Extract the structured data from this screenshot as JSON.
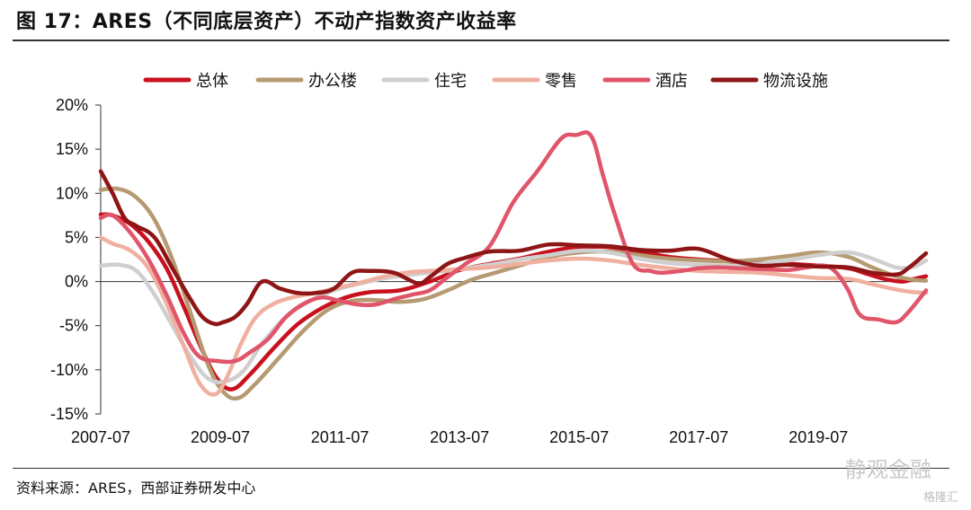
{
  "figure": {
    "title": "图 17：ARES（不同底层资产）不动产指数资产收益率",
    "source": "资料来源：ARES，西部证券研发中心",
    "watermark": "静观金融",
    "watermark2": "格隆汇"
  },
  "chart_data": {
    "type": "line",
    "ylim": [
      -15,
      20
    ],
    "y_ticks": [
      -15,
      -10,
      -5,
      0,
      5,
      10,
      15,
      20
    ],
    "y_tick_labels": [
      "-15%",
      "-10%",
      "-5%",
      "0%",
      "5%",
      "10%",
      "15%",
      "20%"
    ],
    "x_range": [
      2007.5,
      2021.3
    ],
    "x_ticks": [
      "2007-07",
      "2009-07",
      "2011-07",
      "2013-07",
      "2015-07",
      "2017-07",
      "2019-07"
    ],
    "legend_position": "top",
    "grid": false,
    "series": [
      {
        "name": "总体",
        "color": "#c8101e",
        "x": [
          2007.5,
          2007.7,
          2008.0,
          2008.3,
          2008.6,
          2008.9,
          2009.2,
          2009.45,
          2009.7,
          2010.0,
          2010.4,
          2010.8,
          2011.2,
          2011.6,
          2012.0,
          2012.5,
          2013.0,
          2013.5,
          2014.0,
          2014.5,
          2015.0,
          2015.5,
          2016.0,
          2016.5,
          2017.0,
          2017.5,
          2018.0,
          2018.5,
          2019.0,
          2019.5,
          2020.0,
          2020.3,
          2020.6,
          2020.9,
          2021.1,
          2021.3
        ],
        "y": [
          7.6,
          7.5,
          6.5,
          4.5,
          1.5,
          -3.0,
          -7.8,
          -11.0,
          -12.2,
          -10.5,
          -7.5,
          -4.8,
          -3.0,
          -1.8,
          -1.2,
          -1.0,
          0.0,
          1.3,
          2.0,
          2.6,
          3.4,
          3.9,
          3.9,
          3.4,
          2.8,
          2.5,
          2.3,
          2.1,
          2.0,
          1.8,
          1.5,
          0.9,
          0.3,
          0.0,
          0.3,
          0.6
        ]
      },
      {
        "name": "办公楼",
        "color": "#b59a72",
        "x": [
          2007.5,
          2007.8,
          2008.1,
          2008.4,
          2008.7,
          2009.0,
          2009.3,
          2009.55,
          2009.8,
          2010.1,
          2010.5,
          2010.9,
          2011.3,
          2011.7,
          2012.1,
          2012.5,
          2012.9,
          2013.3,
          2013.7,
          2014.1,
          2014.5,
          2015.0,
          2015.5,
          2016.0,
          2016.5,
          2017.0,
          2017.5,
          2018.0,
          2018.5,
          2019.0,
          2019.5,
          2020.0,
          2020.4,
          2020.8,
          2021.1,
          2021.3
        ],
        "y": [
          10.4,
          10.5,
          9.5,
          7.0,
          2.5,
          -3.5,
          -9.5,
          -12.5,
          -13.2,
          -11.5,
          -8.5,
          -5.5,
          -3.2,
          -2.2,
          -2.1,
          -2.3,
          -2.0,
          -1.0,
          0.2,
          1.0,
          1.8,
          2.8,
          3.3,
          3.4,
          3.0,
          2.6,
          2.4,
          2.3,
          2.5,
          2.9,
          3.3,
          2.8,
          1.6,
          0.6,
          0.2,
          0.1
        ]
      },
      {
        "name": "住宅",
        "color": "#cfcfcf",
        "x": [
          2007.5,
          2007.8,
          2008.1,
          2008.4,
          2008.7,
          2009.0,
          2009.3,
          2009.6,
          2009.9,
          2010.2,
          2010.6,
          2011.0,
          2011.4,
          2011.8,
          2012.2,
          2012.6,
          2013.0,
          2013.5,
          2014.0,
          2014.5,
          2015.0,
          2015.5,
          2016.0,
          2016.5,
          2017.0,
          2017.5,
          2018.0,
          2018.5,
          2019.0,
          2019.5,
          2020.0,
          2020.4,
          2020.8,
          2021.1,
          2021.3
        ],
        "y": [
          1.8,
          1.9,
          1.2,
          -1.5,
          -5.0,
          -8.5,
          -11.0,
          -11.3,
          -10.0,
          -7.0,
          -4.0,
          -2.2,
          -1.0,
          -0.3,
          0.3,
          0.7,
          1.0,
          1.4,
          1.9,
          2.5,
          3.0,
          3.5,
          3.3,
          2.6,
          2.1,
          1.9,
          1.8,
          2.0,
          2.4,
          3.0,
          3.3,
          2.6,
          1.6,
          1.7,
          2.4
        ]
      },
      {
        "name": "零售",
        "color": "#f0b0a0",
        "x": [
          2007.5,
          2007.7,
          2008.0,
          2008.3,
          2008.6,
          2008.9,
          2009.15,
          2009.4,
          2009.6,
          2009.85,
          2010.1,
          2010.4,
          2010.7,
          2011.0,
          2011.4,
          2011.8,
          2012.2,
          2012.6,
          2013.0,
          2013.5,
          2014.0,
          2014.5,
          2015.0,
          2015.5,
          2016.0,
          2016.5,
          2017.0,
          2017.5,
          2018.0,
          2018.5,
          2019.0,
          2019.5,
          2020.0,
          2020.4,
          2020.8,
          2021.1,
          2021.3
        ],
        "y": [
          5.0,
          4.3,
          3.5,
          1.5,
          -2.5,
          -7.5,
          -11.5,
          -12.8,
          -11.0,
          -7.0,
          -4.0,
          -2.5,
          -1.8,
          -1.4,
          -0.8,
          -0.2,
          0.5,
          1.0,
          1.2,
          1.4,
          1.6,
          2.0,
          2.4,
          2.6,
          2.4,
          1.9,
          1.5,
          1.2,
          1.1,
          1.0,
          0.7,
          0.4,
          0.3,
          -0.3,
          -0.9,
          -1.2,
          -1.3
        ]
      },
      {
        "name": "酒店",
        "color": "#e0556a",
        "x": [
          2007.5,
          2007.7,
          2008.0,
          2008.3,
          2008.6,
          2008.9,
          2009.15,
          2009.45,
          2009.75,
          2010.0,
          2010.3,
          2010.6,
          2010.9,
          2011.2,
          2011.5,
          2011.8,
          2012.1,
          2012.4,
          2012.7,
          2013.0,
          2013.3,
          2013.6,
          2014.0,
          2014.4,
          2014.8,
          2015.2,
          2015.45,
          2015.7,
          2015.9,
          2016.1,
          2016.4,
          2016.7,
          2016.9,
          2017.2,
          2017.5,
          2017.8,
          2018.2,
          2018.6,
          2019.0,
          2019.3,
          2019.6,
          2019.8,
          2020.0,
          2020.2,
          2020.5,
          2020.8,
          2021.0,
          2021.3
        ],
        "y": [
          7.2,
          7.5,
          5.5,
          2.5,
          -1.5,
          -6.0,
          -8.5,
          -9.0,
          -9.0,
          -8.0,
          -6.5,
          -4.0,
          -2.5,
          -1.8,
          -2.2,
          -2.6,
          -2.6,
          -2.0,
          -1.5,
          -1.0,
          0.5,
          2.0,
          4.0,
          9.0,
          12.5,
          16.2,
          16.6,
          16.5,
          12.0,
          7.5,
          2.0,
          1.2,
          1.0,
          1.2,
          1.5,
          1.6,
          1.5,
          1.4,
          1.3,
          1.6,
          1.8,
          1.0,
          -1.0,
          -3.8,
          -4.3,
          -4.6,
          -3.5,
          -1.0
        ]
      },
      {
        "name": "物流设施",
        "color": "#8e1515",
        "x": [
          2007.5,
          2007.7,
          2007.9,
          2008.1,
          2008.4,
          2008.7,
          2009.0,
          2009.2,
          2009.4,
          2009.55,
          2009.75,
          2009.95,
          2010.2,
          2010.5,
          2010.8,
          2011.1,
          2011.4,
          2011.7,
          2012.0,
          2012.4,
          2012.8,
          2013.0,
          2013.3,
          2013.6,
          2014.0,
          2014.5,
          2015.0,
          2015.5,
          2016.0,
          2016.5,
          2017.0,
          2017.5,
          2018.0,
          2018.5,
          2019.0,
          2019.5,
          2020.0,
          2020.4,
          2020.8,
          2021.0,
          2021.3
        ],
        "y": [
          12.5,
          10.0,
          7.2,
          6.3,
          5.0,
          1.5,
          -2.0,
          -4.0,
          -4.8,
          -4.6,
          -4.0,
          -2.5,
          0.0,
          -0.8,
          -1.3,
          -1.3,
          -0.8,
          1.0,
          1.2,
          1.0,
          -0.2,
          0.5,
          2.0,
          2.7,
          3.4,
          3.5,
          4.2,
          4.1,
          4.0,
          3.6,
          3.5,
          3.7,
          2.5,
          1.8,
          1.9,
          1.7,
          1.6,
          1.0,
          0.8,
          1.5,
          3.2
        ]
      }
    ]
  }
}
